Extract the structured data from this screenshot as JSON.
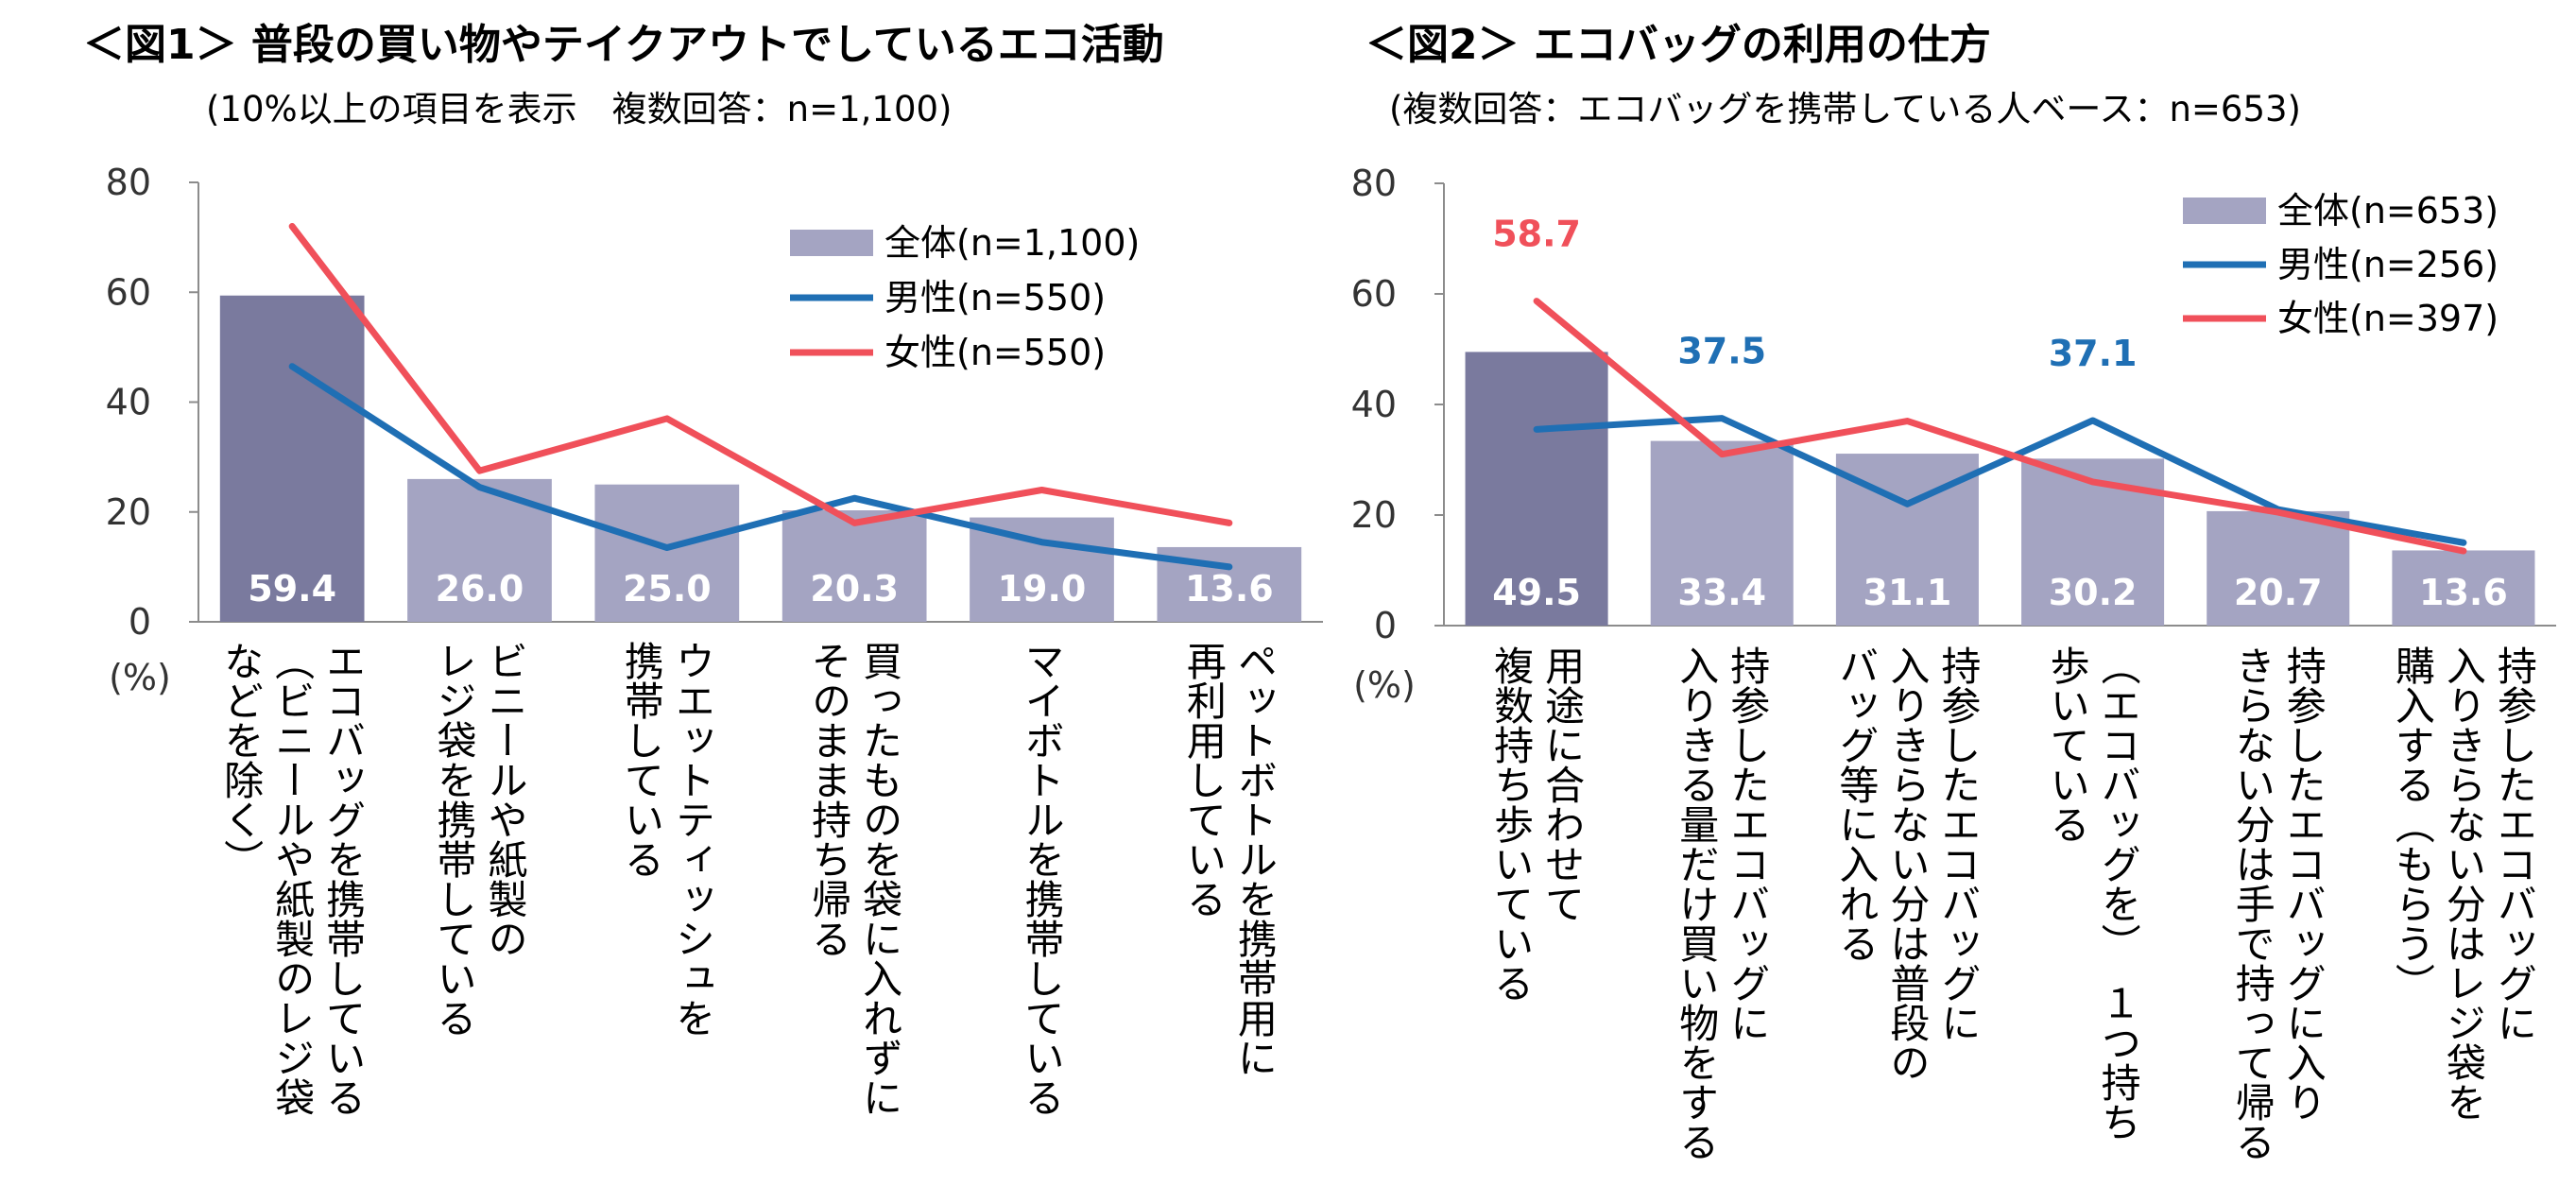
{
  "chart_data": [
    {
      "type": "bar",
      "title": "＜図1＞ 普段の買い物やテイクアウトでしているエコ活動",
      "subtitle": "(10%以上の項目を表示　複数回答：n=1,100)",
      "ylabel": "(%)",
      "ylim": [
        0,
        80
      ],
      "yticks": [
        0,
        20,
        40,
        60,
        80
      ],
      "categories": [
        [
          "エコバッグを携帯している",
          "（ビニールや紙製のレジ袋",
          "などを除く）"
        ],
        [
          "ビニールや紙製の",
          "レジ袋を携帯している"
        ],
        [
          "ウエットティッシュを",
          "携帯している"
        ],
        [
          "買ったものを袋に入れずに",
          "そのまま持ち帰る"
        ],
        [
          "マイボトルを携帯している"
        ],
        [
          "ペットボトルを携帯用に",
          "再利用している"
        ]
      ],
      "series": [
        {
          "name": "全体(n=1,100)",
          "kind": "bar",
          "values": [
            59.4,
            26.0,
            25.0,
            20.3,
            19.0,
            13.6
          ],
          "labels": [
            "59.4",
            "26.0",
            "25.0",
            "20.3",
            "19.0",
            "13.6"
          ]
        },
        {
          "name": "男性(n=550)",
          "kind": "line",
          "values": [
            46.5,
            24.5,
            13.5,
            22.5,
            14.5,
            10.0
          ]
        },
        {
          "name": "女性(n=550)",
          "kind": "line",
          "values": [
            72.0,
            27.5,
            37.0,
            18.0,
            24.0,
            18.0
          ]
        }
      ],
      "legend": "top-right"
    },
    {
      "type": "bar",
      "title": "＜図2＞ エコバッグの利用の仕方",
      "subtitle": "(複数回答：エコバッグを携帯している人ベース：n=653)",
      "ylabel": "(%)",
      "ylim": [
        0,
        80
      ],
      "yticks": [
        0,
        20,
        40,
        60,
        80
      ],
      "categories": [
        [
          "用途に合わせて",
          "複数持ち歩いている"
        ],
        [
          "持参したエコバッグに",
          "入りきる量だけ買い物をする"
        ],
        [
          "持参したエコバッグに",
          "入りきらない分は普段の",
          "バッグ等に入れる"
        ],
        [
          "（エコバッグを）　１つ持ち",
          "歩いている"
        ],
        [
          "持参したエコバッグに入り",
          "きらない分は手で持って帰る"
        ],
        [
          "持参したエコバッグに",
          "入りきらない分はレジ袋を",
          "購入する（もらう）"
        ]
      ],
      "series": [
        {
          "name": "全体(n=653)",
          "kind": "bar",
          "values": [
            49.5,
            33.4,
            31.1,
            30.2,
            20.7,
            13.6
          ],
          "labels": [
            "49.5",
            "33.4",
            "31.1",
            "30.2",
            "20.7",
            "13.6"
          ]
        },
        {
          "name": "男性(n=256)",
          "kind": "line",
          "values": [
            35.5,
            37.5,
            22.0,
            37.1,
            21.0,
            15.0
          ]
        },
        {
          "name": "女性(n=397)",
          "kind": "line",
          "values": [
            58.7,
            31.0,
            37.0,
            26.0,
            20.5,
            13.5
          ]
        }
      ],
      "annotations": [
        {
          "series": 2,
          "index": 0,
          "text": "58.7"
        },
        {
          "series": 1,
          "index": 1,
          "text": "37.5"
        },
        {
          "series": 1,
          "index": 3,
          "text": "37.1"
        }
      ],
      "legend": "top-right"
    }
  ],
  "colors": {
    "bar_first": "#7a7a9e",
    "bar_rest": "#a4a4c2",
    "male": "#1f6fb4",
    "female": "#f0505a",
    "axis": "#8c8c8c"
  }
}
